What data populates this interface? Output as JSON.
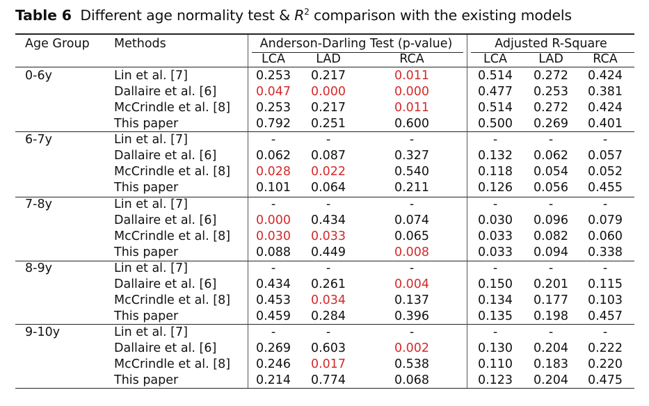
{
  "caption": {
    "label": "Table 6",
    "text_before": "Different age normality test & ",
    "r_symbol": "R",
    "superscript": "2",
    "text_after": " comparison with the existing models"
  },
  "table": {
    "headers": {
      "age_group": "Age Group",
      "methods": "Methods",
      "ad_group": "Anderson-Darling Test (p-value)",
      "r2_group": "Adjusted R-Square",
      "ad_cols": [
        "LCA",
        "LAD",
        "RCA"
      ],
      "r2_cols": [
        "LCA",
        "LAD",
        "RCA"
      ]
    },
    "highlight_color": "#d42a2a",
    "groups": [
      {
        "age": "0-6y",
        "rows": [
          {
            "method": "Lin et al. [7]",
            "ad": [
              "0.253",
              "0.217",
              "0.011"
            ],
            "ad_red": [
              false,
              false,
              true
            ],
            "r2": [
              "0.514",
              "0.272",
              "0.424"
            ]
          },
          {
            "method": "Dallaire et al. [6]",
            "ad": [
              "0.047",
              "0.000",
              "0.000"
            ],
            "ad_red": [
              true,
              true,
              true
            ],
            "r2": [
              "0.477",
              "0.253",
              "0.381"
            ]
          },
          {
            "method": "McCrindle et al. [8]",
            "ad": [
              "0.253",
              "0.217",
              "0.011"
            ],
            "ad_red": [
              false,
              false,
              true
            ],
            "r2": [
              "0.514",
              "0.272",
              "0.424"
            ]
          },
          {
            "method": "This paper",
            "ad": [
              "0.792",
              "0.251",
              "0.600"
            ],
            "ad_red": [
              false,
              false,
              false
            ],
            "r2": [
              "0.500",
              "0.269",
              "0.401"
            ]
          }
        ]
      },
      {
        "age": "6-7y",
        "rows": [
          {
            "method": "Lin et al. [7]",
            "ad": [
              "-",
              "-",
              "-"
            ],
            "ad_red": [
              false,
              false,
              false
            ],
            "r2": [
              "-",
              "-",
              "-"
            ]
          },
          {
            "method": "Dallaire et al. [6]",
            "ad": [
              "0.062",
              "0.087",
              "0.327"
            ],
            "ad_red": [
              false,
              false,
              false
            ],
            "r2": [
              "0.132",
              "0.062",
              "0.057"
            ]
          },
          {
            "method": "McCrindle et al. [8]",
            "ad": [
              "0.028",
              "0.022",
              "0.540"
            ],
            "ad_red": [
              true,
              true,
              false
            ],
            "r2": [
              "0.118",
              "0.054",
              "0.052"
            ]
          },
          {
            "method": "This paper",
            "ad": [
              "0.101",
              "0.064",
              "0.211"
            ],
            "ad_red": [
              false,
              false,
              false
            ],
            "r2": [
              "0.126",
              "0.056",
              "0.455"
            ]
          }
        ]
      },
      {
        "age": "7-8y",
        "rows": [
          {
            "method": "Lin et al. [7]",
            "ad": [
              "-",
              "-",
              "-"
            ],
            "ad_red": [
              false,
              false,
              false
            ],
            "r2": [
              "-",
              "-",
              "-"
            ]
          },
          {
            "method": "Dallaire et al. [6]",
            "ad": [
              "0.000",
              "0.434",
              "0.074"
            ],
            "ad_red": [
              true,
              false,
              false
            ],
            "r2": [
              "0.030",
              "0.096",
              "0.079"
            ]
          },
          {
            "method": "McCrindle et al. [8]",
            "ad": [
              "0.030",
              "0.033",
              "0.065"
            ],
            "ad_red": [
              true,
              true,
              false
            ],
            "r2": [
              "0.033",
              "0.082",
              "0.060"
            ]
          },
          {
            "method": "This paper",
            "ad": [
              "0.088",
              "0.449",
              "0.008"
            ],
            "ad_red": [
              false,
              false,
              true
            ],
            "r2": [
              "0.033",
              "0.094",
              "0.338"
            ]
          }
        ]
      },
      {
        "age": "8-9y",
        "rows": [
          {
            "method": "Lin et al. [7]",
            "ad": [
              "-",
              "-",
              "-"
            ],
            "ad_red": [
              false,
              false,
              false
            ],
            "r2": [
              "-",
              "-",
              "-"
            ]
          },
          {
            "method": "Dallaire et al. [6]",
            "ad": [
              "0.434",
              "0.261",
              "0.004"
            ],
            "ad_red": [
              false,
              false,
              true
            ],
            "r2": [
              "0.150",
              "0.201",
              "0.115"
            ]
          },
          {
            "method": "McCrindle et al. [8]",
            "ad": [
              "0.453",
              "0.034",
              "0.137"
            ],
            "ad_red": [
              false,
              true,
              false
            ],
            "r2": [
              "0.134",
              "0.177",
              "0.103"
            ]
          },
          {
            "method": "This paper",
            "ad": [
              "0.459",
              "0.284",
              "0.396"
            ],
            "ad_red": [
              false,
              false,
              false
            ],
            "r2": [
              "0.135",
              "0.198",
              "0.457"
            ]
          }
        ]
      },
      {
        "age": "9-10y",
        "rows": [
          {
            "method": "Lin et al. [7]",
            "ad": [
              "-",
              "-",
              "-"
            ],
            "ad_red": [
              false,
              false,
              false
            ],
            "r2": [
              "-",
              "-",
              "-"
            ]
          },
          {
            "method": "Dallaire et al. [6]",
            "ad": [
              "0.269",
              "0.603",
              "0.002"
            ],
            "ad_red": [
              false,
              false,
              true
            ],
            "r2": [
              "0.130",
              "0.204",
              "0.222"
            ]
          },
          {
            "method": "McCrindle et al. [8]",
            "ad": [
              "0.246",
              "0.017",
              "0.538"
            ],
            "ad_red": [
              false,
              true,
              false
            ],
            "r2": [
              "0.110",
              "0.183",
              "0.220"
            ]
          },
          {
            "method": "This paper",
            "ad": [
              "0.214",
              "0.774",
              "0.068"
            ],
            "ad_red": [
              false,
              false,
              false
            ],
            "r2": [
              "0.123",
              "0.204",
              "0.475"
            ]
          }
        ]
      }
    ]
  }
}
